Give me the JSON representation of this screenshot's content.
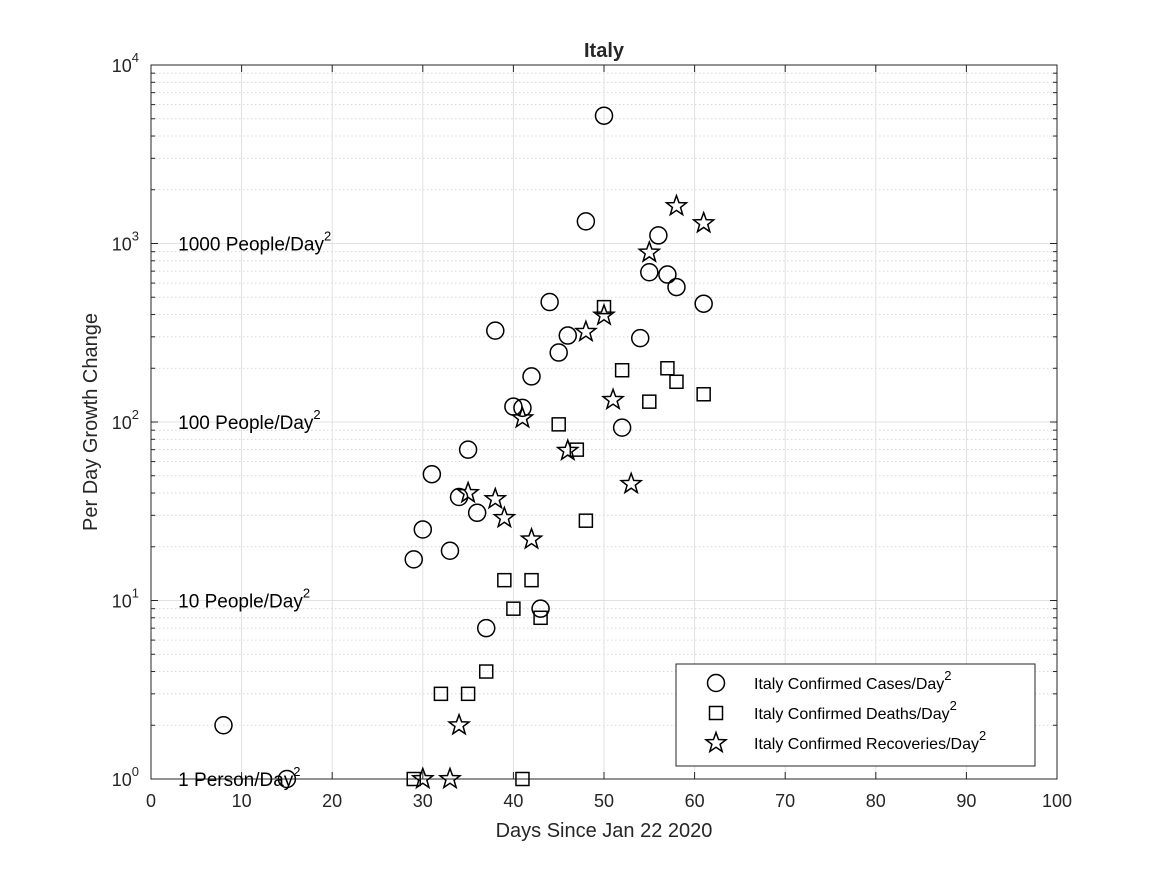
{
  "chart_data": {
    "type": "scatter",
    "title": "Italy",
    "xlabel": "Days Since Jan 22 2020",
    "ylabel": "Per Day Growth Change",
    "xlim": [
      0,
      100
    ],
    "ylim": [
      1,
      10000
    ],
    "yscale": "log",
    "grid": "on",
    "legend_position": "bottom-right",
    "x_ticks": [
      0,
      10,
      20,
      30,
      40,
      50,
      60,
      70,
      80,
      90,
      100
    ],
    "y_ticks": [
      {
        "value": 1,
        "base": "10",
        "exp": "0"
      },
      {
        "value": 10,
        "base": "10",
        "exp": "1"
      },
      {
        "value": 100,
        "base": "10",
        "exp": "2"
      },
      {
        "value": 1000,
        "base": "10",
        "exp": "3"
      },
      {
        "value": 10000,
        "base": "10",
        "exp": "4"
      }
    ],
    "annotations": [
      {
        "text": "1000 People/Day",
        "sup": "2",
        "x": 3,
        "y": 1000
      },
      {
        "text": "100 People/Day",
        "sup": "2",
        "x": 3,
        "y": 100
      },
      {
        "text": "10 People/Day",
        "sup": "2",
        "x": 3,
        "y": 10
      },
      {
        "text": "1 Person/Day",
        "sup": "2",
        "x": 3,
        "y": 1
      }
    ],
    "series": [
      {
        "name": "Italy Confirmed Cases/Day",
        "name_sup": "2",
        "marker": "circle",
        "points": [
          [
            8,
            2
          ],
          [
            15,
            1
          ],
          [
            29,
            17
          ],
          [
            30,
            25
          ],
          [
            31,
            51
          ],
          [
            33,
            19
          ],
          [
            34,
            38
          ],
          [
            35,
            70
          ],
          [
            36,
            31
          ],
          [
            37,
            7
          ],
          [
            38,
            325
          ],
          [
            40,
            122
          ],
          [
            41,
            120
          ],
          [
            42,
            180
          ],
          [
            43,
            9
          ],
          [
            44,
            470
          ],
          [
            45,
            245
          ],
          [
            46,
            305
          ],
          [
            48,
            1330
          ],
          [
            50,
            5200
          ],
          [
            52,
            93
          ],
          [
            54,
            295
          ],
          [
            55,
            690
          ],
          [
            56,
            1110
          ],
          [
            57,
            670
          ],
          [
            58,
            570
          ],
          [
            61,
            460
          ]
        ]
      },
      {
        "name": "Italy Confirmed Deaths/Day",
        "name_sup": "2",
        "marker": "square",
        "points": [
          [
            29,
            1
          ],
          [
            32,
            3
          ],
          [
            35,
            3
          ],
          [
            37,
            4
          ],
          [
            39,
            13
          ],
          [
            40,
            9
          ],
          [
            41,
            1
          ],
          [
            42,
            13
          ],
          [
            43,
            8
          ],
          [
            45,
            97
          ],
          [
            47,
            70
          ],
          [
            48,
            28
          ],
          [
            50,
            440
          ],
          [
            52,
            195
          ],
          [
            55,
            130
          ],
          [
            57,
            200
          ],
          [
            58,
            168
          ],
          [
            61,
            143
          ]
        ]
      },
      {
        "name": "Italy Confirmed Recoveries/Day",
        "name_sup": "2",
        "marker": "star",
        "points": [
          [
            30,
            1
          ],
          [
            33,
            1
          ],
          [
            34,
            2
          ],
          [
            35,
            40
          ],
          [
            38,
            37
          ],
          [
            39,
            29
          ],
          [
            41,
            105
          ],
          [
            42,
            22
          ],
          [
            46,
            69
          ],
          [
            48,
            320
          ],
          [
            50,
            395
          ],
          [
            51,
            133
          ],
          [
            53,
            45
          ],
          [
            55,
            890
          ],
          [
            58,
            1620
          ],
          [
            61,
            1300
          ]
        ]
      }
    ]
  }
}
